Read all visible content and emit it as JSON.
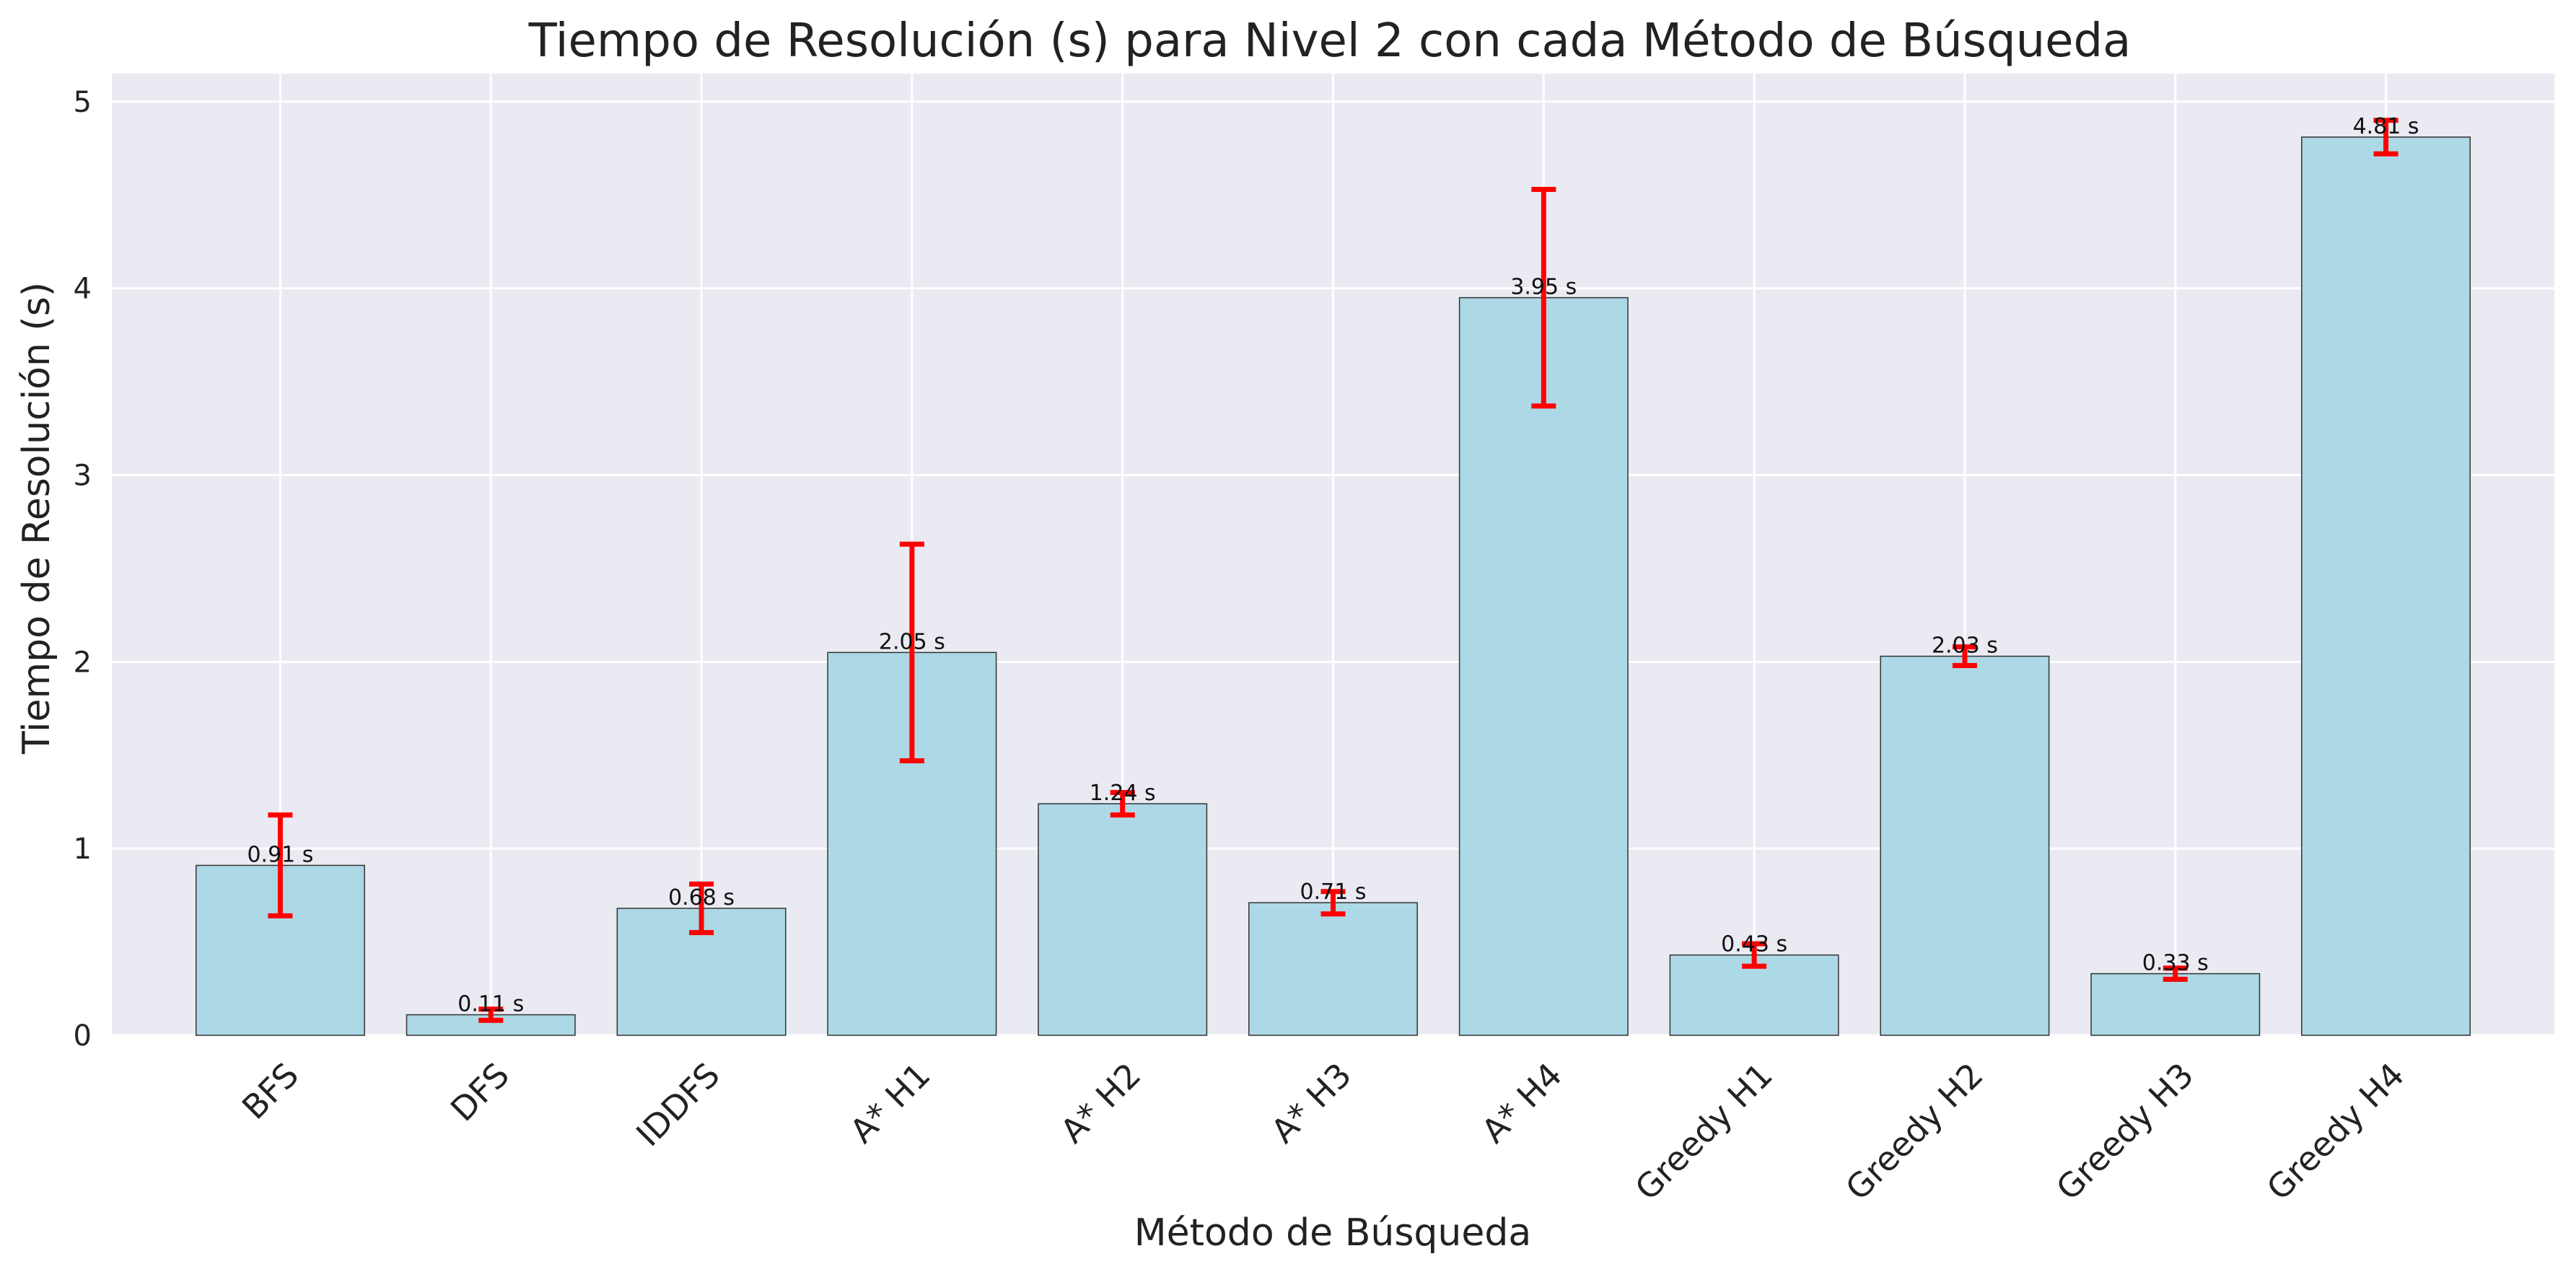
{
  "chart_data": {
    "type": "bar",
    "title": "Tiempo de Resolución (s) para Nivel 2 con cada Método de Búsqueda",
    "xlabel": "Método de Búsqueda",
    "ylabel": "Tiempo de Resolución (s)",
    "categories": [
      "BFS",
      "DFS",
      "IDDFS",
      "A* H1",
      "A* H2",
      "A* H3",
      "A* H4",
      "Greedy H1",
      "Greedy H2",
      "Greedy H3",
      "Greedy H4"
    ],
    "values": [
      0.91,
      0.11,
      0.68,
      2.05,
      1.24,
      0.71,
      3.95,
      0.43,
      2.03,
      0.33,
      4.81
    ],
    "errors": [
      0.27,
      0.03,
      0.13,
      0.58,
      0.06,
      0.06,
      0.58,
      0.06,
      0.05,
      0.03,
      0.09
    ],
    "data_labels": [
      "0.91 s",
      "0.11 s",
      "0.68 s",
      "2.05 s",
      "1.24 s",
      "0.71 s",
      "3.95 s",
      "0.43 s",
      "2.03 s",
      "0.33 s",
      "4.81 s"
    ],
    "ylim": [
      0,
      5.15
    ],
    "yticks": [
      0,
      1,
      2,
      3,
      4,
      5
    ],
    "grid": true,
    "colors": {
      "bar": "#add8e6",
      "bar_edge": "#333333",
      "error_bar": "#ff0000",
      "plot_background": "#eaeaf2",
      "grid": "#ffffff"
    }
  }
}
